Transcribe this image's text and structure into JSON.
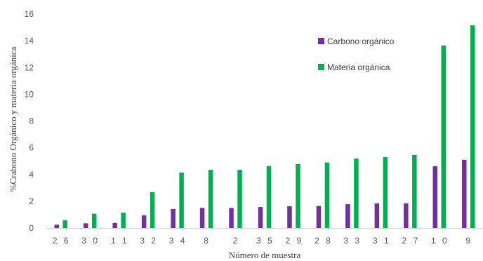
{
  "chart_data": {
    "type": "bar",
    "xlabel": "Número de muestra",
    "ylabel": "%Crabono Orgánico y materia orgánica",
    "ylim": [
      0,
      16
    ],
    "yticks": [
      0,
      2,
      4,
      6,
      8,
      10,
      12,
      14,
      16
    ],
    "grid": false,
    "legend_position": "top-right",
    "categories": [
      "26",
      "30",
      "11",
      "32",
      "34",
      "8",
      "2",
      "35",
      "29",
      "28",
      "33",
      "31",
      "27",
      "10",
      "9"
    ],
    "x_tick_labels": [
      "2 6",
      "3 0",
      "1 1",
      "3 2",
      "3 4",
      "8",
      "2",
      "3 5",
      "2 9",
      "2 8",
      "3 3",
      "3 1",
      "2 7",
      "1 0",
      "9"
    ],
    "series": [
      {
        "name": "Carbono orgánico",
        "color": "#7030a0",
        "values": [
          0.25,
          0.35,
          0.38,
          0.95,
          1.42,
          1.5,
          1.5,
          1.57,
          1.63,
          1.65,
          1.78,
          1.85,
          1.85,
          4.62,
          5.1
        ]
      },
      {
        "name": "Materia orgánica",
        "color": "#00b050",
        "values": [
          0.58,
          1.07,
          1.15,
          2.68,
          4.14,
          4.35,
          4.35,
          4.63,
          4.78,
          4.9,
          5.2,
          5.3,
          5.46,
          13.65,
          15.15
        ]
      }
    ]
  }
}
